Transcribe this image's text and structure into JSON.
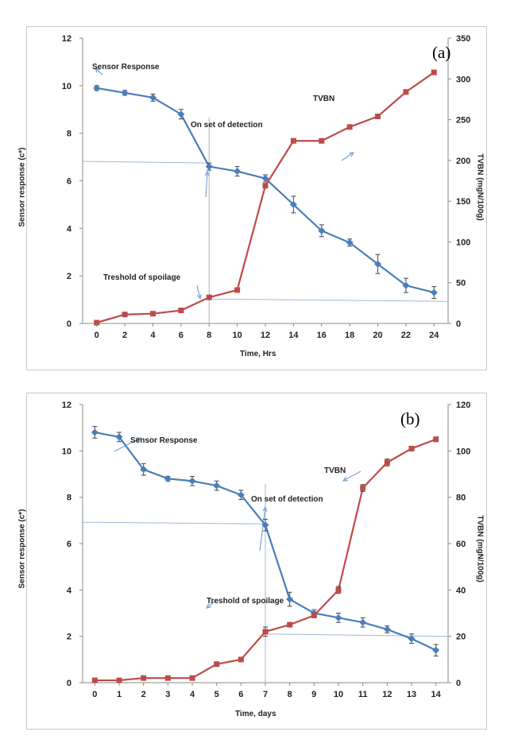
{
  "chart_data": [
    {
      "id": "a",
      "type": "line",
      "panel_label": "(a)",
      "xlabel": "Time, Hrs",
      "ylabel": "Sensor response (c*)",
      "y2label": "TVBN (mgN/100g)",
      "xlim": [
        -1,
        25
      ],
      "xticks": [
        0,
        2,
        4,
        6,
        8,
        10,
        12,
        14,
        16,
        18,
        20,
        22,
        24
      ],
      "ylim": [
        0,
        12
      ],
      "yticks": [
        0,
        2,
        4,
        6,
        8,
        10,
        12
      ],
      "y2lim": [
        0,
        350
      ],
      "y2ticks": [
        0,
        50,
        100,
        150,
        200,
        250,
        300,
        350
      ],
      "series": [
        {
          "name": "Sensor Response",
          "axis": "left",
          "color": "#4a7ebb",
          "marker": "diamond",
          "x": [
            0,
            2,
            4,
            6,
            8,
            10,
            12,
            14,
            16,
            18,
            20,
            22,
            24
          ],
          "y": [
            9.9,
            9.7,
            9.5,
            8.8,
            6.6,
            6.4,
            6.1,
            5.0,
            3.9,
            3.4,
            2.5,
            1.6,
            1.3
          ],
          "err": [
            0.1,
            0.1,
            0.15,
            0.2,
            0.15,
            0.2,
            0.15,
            0.35,
            0.25,
            0.15,
            0.4,
            0.3,
            0.25
          ]
        },
        {
          "name": "TVBN",
          "axis": "right",
          "color": "#be4b48",
          "marker": "square",
          "x": [
            0,
            2,
            4,
            6,
            8,
            10,
            12,
            14,
            16,
            18,
            20,
            22,
            24
          ],
          "y": [
            1,
            11,
            12,
            16,
            32,
            41,
            169,
            224,
            224,
            241,
            254,
            284,
            308
          ],
          "err": [
            1,
            1,
            1,
            1,
            1,
            1,
            2,
            1,
            1,
            1,
            1,
            1,
            2
          ]
        }
      ],
      "annotations": [
        {
          "text": "Sensor Response"
        },
        {
          "text": "TVBN"
        },
        {
          "text": "On set of detection"
        },
        {
          "text": "Treshold of spoilage"
        }
      ],
      "reference_lines": {
        "vertical_x": 8,
        "sensor_level": 6.75,
        "tvbn_level": 30
      }
    },
    {
      "id": "b",
      "type": "line",
      "panel_label": "(b)",
      "xlabel": "Time, days",
      "ylabel": "Sensor response (c*)",
      "y2label": "TVBN (mgN/100g)",
      "xlim": [
        -0.5,
        14.5
      ],
      "xticks": [
        0,
        1,
        2,
        3,
        4,
        5,
        6,
        7,
        8,
        9,
        10,
        11,
        12,
        13,
        14
      ],
      "ylim": [
        0,
        12
      ],
      "yticks": [
        0,
        2,
        4,
        6,
        8,
        10,
        12
      ],
      "y2lim": [
        0,
        120
      ],
      "y2ticks": [
        0,
        20,
        40,
        60,
        80,
        100,
        120
      ],
      "series": [
        {
          "name": "Sensor Response",
          "axis": "left",
          "color": "#4a7ebb",
          "marker": "diamond",
          "x": [
            0,
            1,
            2,
            3,
            4,
            5,
            6,
            7,
            8,
            9,
            10,
            11,
            12,
            13,
            14
          ],
          "y": [
            10.8,
            10.6,
            9.2,
            8.8,
            8.7,
            8.5,
            8.1,
            6.8,
            3.6,
            3.0,
            2.8,
            2.6,
            2.3,
            1.9,
            1.4
          ],
          "err": [
            0.25,
            0.2,
            0.25,
            0.1,
            0.2,
            0.2,
            0.2,
            0.25,
            0.3,
            0.15,
            0.2,
            0.2,
            0.15,
            0.2,
            0.25
          ]
        },
        {
          "name": "TVBN",
          "axis": "right",
          "color": "#be4b48",
          "marker": "square",
          "x": [
            0,
            1,
            2,
            3,
            4,
            5,
            6,
            7,
            8,
            9,
            10,
            11,
            12,
            13,
            14
          ],
          "y": [
            1,
            1,
            2,
            2,
            2,
            8,
            10,
            22,
            25,
            29,
            40,
            84,
            95,
            101,
            105
          ],
          "err": [
            0.5,
            0.5,
            0.5,
            0.5,
            0.5,
            0.5,
            0.5,
            2,
            1,
            1,
            1.5,
            1.5,
            1.5,
            1,
            1
          ]
        }
      ],
      "annotations": [
        {
          "text": "Sensor Response"
        },
        {
          "text": "TVBN"
        },
        {
          "text": "On set of detection"
        },
        {
          "text": "Treshold of spoilage"
        }
      ],
      "reference_lines": {
        "vertical_x": 7,
        "sensor_level": 6.85,
        "tvbn_level": 21
      }
    }
  ]
}
